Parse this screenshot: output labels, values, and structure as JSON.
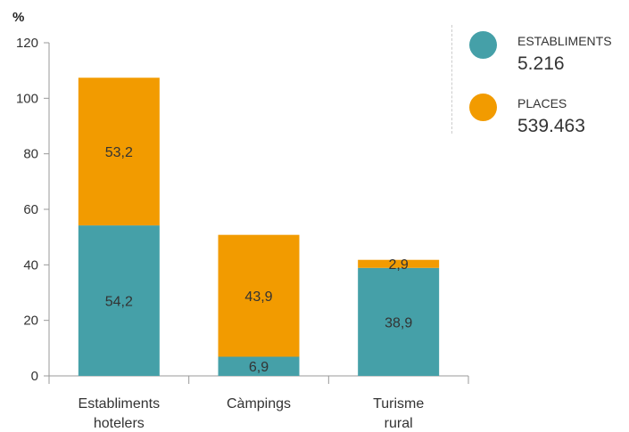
{
  "chart_data": {
    "type": "bar",
    "stacked": true,
    "unit_label": "%",
    "categories": [
      [
        "Establiments",
        "hotelers"
      ],
      [
        "Càmpings"
      ],
      [
        "Turisme",
        "rural"
      ]
    ],
    "series": [
      {
        "name": "ESTABLIMENTS",
        "total": "5.216",
        "color": "#45a0a8",
        "values": [
          54.2,
          6.9,
          38.9
        ],
        "labels": [
          "54,2",
          "6,9",
          "38,9"
        ]
      },
      {
        "name": "PLACES",
        "total": "539.463",
        "color": "#f29b00",
        "values": [
          53.2,
          43.9,
          2.9
        ],
        "labels": [
          "53,2",
          "43,9",
          "2,9"
        ]
      }
    ],
    "ylim": [
      0,
      120
    ],
    "yticks": [
      0,
      20,
      40,
      60,
      80,
      100,
      120
    ],
    "grid": false,
    "legend_position": "top-right"
  }
}
